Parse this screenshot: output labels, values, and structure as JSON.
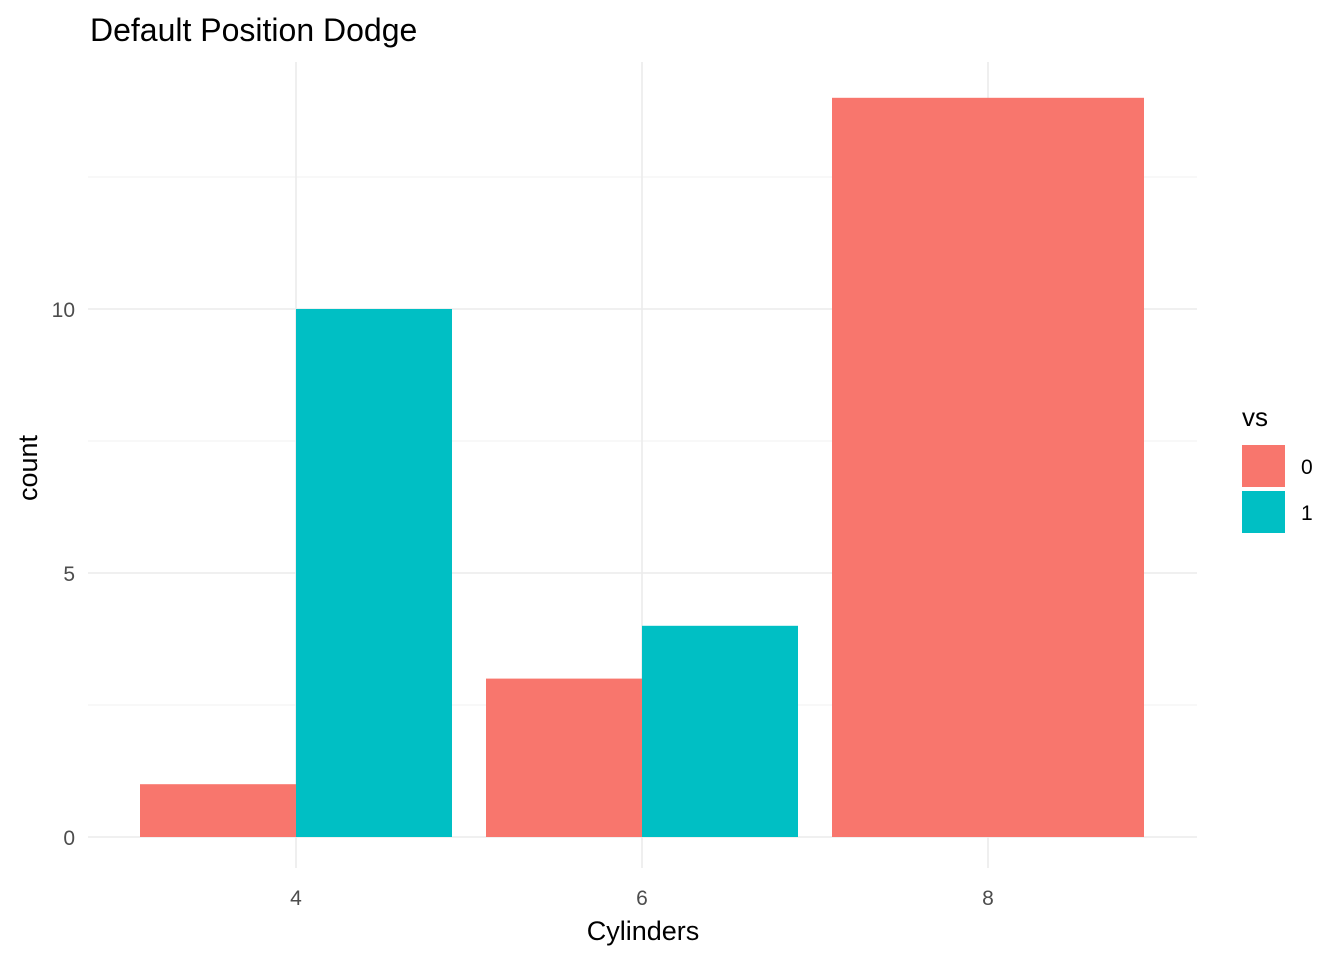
{
  "chart_data": {
    "type": "bar",
    "title": "Default Position Dodge",
    "xlabel": "Cylinders",
    "ylabel": "count",
    "categories": [
      "4",
      "6",
      "8"
    ],
    "series": [
      {
        "name": "0",
        "color": "#F8766D",
        "values": [
          1,
          3,
          14
        ]
      },
      {
        "name": "1",
        "color": "#00BFC4",
        "values": [
          10,
          4,
          null
        ]
      }
    ],
    "y_ticks": [
      0,
      5,
      10
    ],
    "ylim": [
      0,
      14
    ],
    "legend": {
      "title": "vs",
      "placement": "right"
    },
    "grid": true,
    "position": "dodge"
  }
}
